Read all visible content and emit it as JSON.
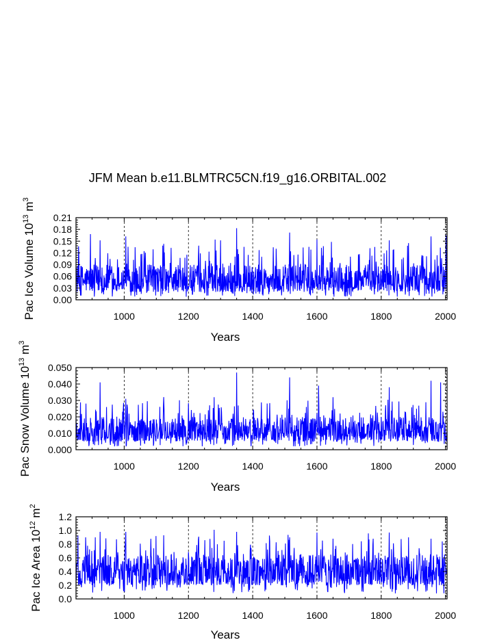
{
  "chart_data": {
    "type": "line",
    "title": "JFM Mean b.e11.BLMTRC5CN.f19_g16.ORBITAL.002",
    "x_range": [
      850,
      2005
    ],
    "x_ticks": [
      1000,
      1200,
      1400,
      1600,
      1800,
      2000
    ],
    "x_tick_labels": [
      "1000",
      "1200",
      "1400",
      "1600",
      "1800",
      "2000"
    ],
    "grid": "dashed vertical lines at x ticks",
    "series_color": "#0000ff",
    "panels": [
      {
        "ylabel": {
          "base": "Pac Ice Volume 10",
          "exp": "13",
          "unit": " m",
          "unit_exp": "3"
        },
        "xlabel": "Years",
        "ylim": [
          0,
          0.21
        ],
        "y_ticks": [
          0.0,
          0.03,
          0.06,
          0.09,
          0.12,
          0.15,
          0.18,
          0.21
        ],
        "y_tick_labels": [
          "0.00",
          "0.03",
          "0.06",
          "0.09",
          "0.12",
          "0.15",
          "0.18",
          "0.21"
        ],
        "series_name": "Pac Ice Volume",
        "typical_range": [
          0.02,
          0.09
        ],
        "peaks": [
          [
            895,
            0.168
          ],
          [
            925,
            0.152
          ],
          [
            1005,
            0.162
          ],
          [
            1123,
            0.143
          ],
          [
            1283,
            0.154
          ],
          [
            1300,
            0.152
          ],
          [
            1350,
            0.183
          ],
          [
            1515,
            0.172
          ],
          [
            1600,
            0.154
          ],
          [
            1645,
            0.148
          ],
          [
            1765,
            0.132
          ],
          [
            1825,
            0.152
          ],
          [
            1885,
            0.145
          ],
          [
            1955,
            0.162
          ],
          [
            2002,
            0.165
          ]
        ]
      },
      {
        "ylabel": {
          "base": "Pac Snow Volume 10",
          "exp": "13",
          "unit": " m",
          "unit_exp": "3"
        },
        "xlabel": "Years",
        "ylim": [
          0,
          0.05
        ],
        "y_ticks": [
          0.0,
          0.01,
          0.02,
          0.03,
          0.04,
          0.05
        ],
        "y_tick_labels": [
          "0.000",
          "0.010",
          "0.020",
          "0.030",
          "0.040",
          "0.050"
        ],
        "series_name": "Pac Snow Volume",
        "typical_range": [
          0.005,
          0.02
        ],
        "peaks": [
          [
            925,
            0.041
          ],
          [
            1005,
            0.031
          ],
          [
            1123,
            0.032
          ],
          [
            1280,
            0.032
          ],
          [
            1350,
            0.047
          ],
          [
            1515,
            0.044
          ],
          [
            1605,
            0.039
          ],
          [
            1650,
            0.032
          ],
          [
            1825,
            0.038
          ],
          [
            1955,
            0.042
          ],
          [
            1985,
            0.041
          ]
        ]
      },
      {
        "ylabel": {
          "base": "Pac Ice Area 10",
          "exp": "12",
          "unit": " m",
          "unit_exp": "2"
        },
        "xlabel": "Years",
        "ylim": [
          0,
          1.2
        ],
        "y_ticks": [
          0.0,
          0.2,
          0.4,
          0.6,
          0.8,
          1.0,
          1.2
        ],
        "y_tick_labels": [
          "0.0",
          "0.2",
          "0.4",
          "0.6",
          "0.8",
          "1.0",
          "1.2"
        ],
        "series_name": "Pac Ice Area",
        "typical_range": [
          0.2,
          0.65
        ],
        "peaks": [
          [
            880,
            0.9
          ],
          [
            925,
            0.98
          ],
          [
            1005,
            0.98
          ],
          [
            1123,
            0.93
          ],
          [
            1280,
            1.01
          ],
          [
            1350,
            0.98
          ],
          [
            1515,
            0.9
          ],
          [
            1600,
            0.97
          ],
          [
            1650,
            0.88
          ],
          [
            1775,
            0.88
          ],
          [
            1825,
            0.97
          ],
          [
            1885,
            0.9
          ],
          [
            1955,
            0.88
          ],
          [
            1990,
            0.84
          ]
        ]
      }
    ]
  }
}
